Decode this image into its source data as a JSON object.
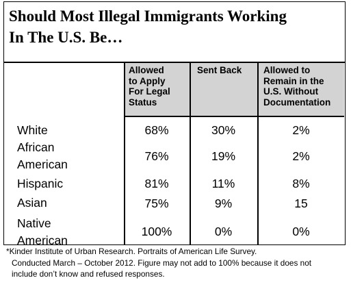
{
  "title": {
    "line1": "Should Most Illegal Immigrants Working",
    "line2": "In The U.S. Be…"
  },
  "columns": [
    {
      "lines": [
        "Allowed",
        "to Apply",
        "For Legal",
        "Status"
      ]
    },
    {
      "lines": [
        "Sent Back"
      ]
    },
    {
      "lines": [
        "Allowed to",
        "Remain in the",
        "U.S. Without",
        "Documentation"
      ]
    }
  ],
  "rows": [
    {
      "label_lines": [
        "White"
      ],
      "values": [
        "68%",
        "30%",
        "2%"
      ]
    },
    {
      "label_lines": [
        "African",
        "American"
      ],
      "values": [
        "76%",
        "19%",
        "2%"
      ]
    },
    {
      "label_lines": [
        "Hispanic"
      ],
      "values": [
        "81%",
        "11%",
        "8%"
      ]
    },
    {
      "label_lines": [
        "Asian"
      ],
      "values": [
        "75%",
        "9%",
        "15"
      ]
    },
    {
      "label_lines": [
        "Native",
        "American"
      ],
      "values": [
        "100%",
        "0%",
        "0%"
      ]
    }
  ],
  "footnote": {
    "line1": "*Kinder Institute of Urban Research. Portraits of American Life Survey.",
    "line2": "Conducted March – October 2012. Figure may not add to 100% because it does not",
    "line3": "include don’t know and refused responses."
  }
}
